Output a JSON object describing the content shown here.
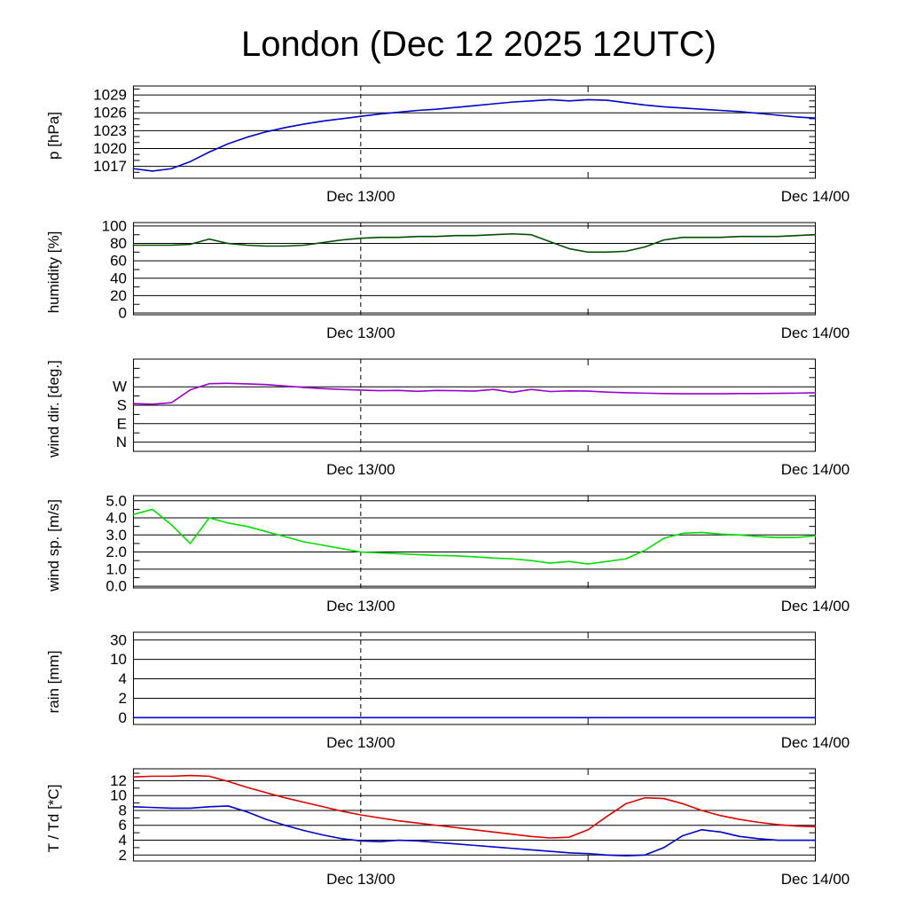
{
  "title": "London (Dec 12 2025 12UTC)",
  "x_axis": {
    "hours_total": 36,
    "dashed_line_hour": 12,
    "minor_tick_hour": 24,
    "tick_labels": [
      {
        "label": "Dec 13/00",
        "hour": 12
      },
      {
        "label": "Dec 14/00",
        "hour": 36
      }
    ]
  },
  "x_hours": [
    0,
    1,
    2,
    3,
    4,
    5,
    6,
    7,
    8,
    9,
    10,
    11,
    12,
    13,
    14,
    15,
    16,
    17,
    18,
    19,
    20,
    21,
    22,
    23,
    24,
    25,
    26,
    27,
    28,
    29,
    30,
    31,
    32,
    33,
    34,
    35,
    36
  ],
  "chart_data": [
    {
      "type": "line",
      "name": "pressure",
      "ylabel": "p [hPa]",
      "ylim": [
        1015.0,
        1030.5
      ],
      "y_minor_step": 1,
      "yticks": [
        {
          "label": "1017",
          "value": 1017
        },
        {
          "label": "1020",
          "value": 1020
        },
        {
          "label": "1023",
          "value": 1023
        },
        {
          "label": "1026",
          "value": 1026
        },
        {
          "label": "1029",
          "value": 1029
        }
      ],
      "series": [
        {
          "name": "pressure",
          "color": "#0000cc",
          "values": [
            1016.6,
            1016.2,
            1016.6,
            1017.8,
            1019.4,
            1020.8,
            1021.9,
            1022.8,
            1023.5,
            1024.1,
            1024.6,
            1025.0,
            1025.4,
            1025.8,
            1026.1,
            1026.4,
            1026.6,
            1026.9,
            1027.2,
            1027.5,
            1027.8,
            1028.0,
            1028.2,
            1028.0,
            1028.2,
            1028.1,
            1027.7,
            1027.3,
            1027.0,
            1026.8,
            1026.6,
            1026.4,
            1026.2,
            1025.9,
            1025.6,
            1025.3,
            1025.1
          ]
        }
      ]
    },
    {
      "type": "line",
      "name": "humidity",
      "ylabel": "humidity [%]",
      "ylim": [
        -2,
        104
      ],
      "y_minor_step": 10,
      "yticks": [
        {
          "label": "0",
          "value": 0
        },
        {
          "label": "20",
          "value": 20
        },
        {
          "label": "40",
          "value": 40
        },
        {
          "label": "60",
          "value": 60
        },
        {
          "label": "80",
          "value": 80
        },
        {
          "label": "100",
          "value": 100
        }
      ],
      "series": [
        {
          "name": "humidity",
          "color": "#004d00",
          "values": [
            78,
            78,
            78,
            79,
            85,
            80,
            78,
            77,
            77,
            78,
            81,
            84,
            86,
            87,
            87,
            88,
            88,
            89,
            89,
            90,
            91,
            90,
            82,
            74,
            70,
            70,
            71,
            76,
            84,
            87,
            87,
            87,
            88,
            88,
            88,
            89,
            90
          ]
        }
      ]
    },
    {
      "type": "line",
      "name": "wind-direction",
      "ylabel": "wind dir. [deg.]",
      "ylim": [
        -45,
        405
      ],
      "y_minor_step": 45,
      "yticks": [
        {
          "label": "N",
          "value": 0
        },
        {
          "label": "E",
          "value": 90
        },
        {
          "label": "S",
          "value": 180
        },
        {
          "label": "W",
          "value": 270
        }
      ],
      "series": [
        {
          "name": "wind-direction",
          "color": "#9900cc",
          "values": [
            188,
            185,
            192,
            255,
            285,
            287,
            284,
            281,
            274,
            267,
            261,
            257,
            254,
            251,
            252,
            248,
            252,
            251,
            249,
            257,
            243,
            257,
            247,
            250,
            249,
            244,
            241,
            239,
            237,
            236,
            236,
            236,
            237,
            237,
            238,
            239,
            241
          ]
        }
      ]
    },
    {
      "type": "line",
      "name": "wind-speed",
      "ylabel": "wind sp. [m/s]",
      "ylim": [
        -0.1,
        5.3
      ],
      "y_minor_step": 0.5,
      "yticks": [
        {
          "label": "0.0",
          "value": 0.0
        },
        {
          "label": "1.0",
          "value": 1.0
        },
        {
          "label": "2.0",
          "value": 2.0
        },
        {
          "label": "3.0",
          "value": 3.0
        },
        {
          "label": "4.0",
          "value": 4.0
        },
        {
          "label": "5.0",
          "value": 5.0
        }
      ],
      "series": [
        {
          "name": "wind-speed",
          "color": "#00dd00",
          "values": [
            4.2,
            4.5,
            3.6,
            2.5,
            4.0,
            3.7,
            3.5,
            3.2,
            2.9,
            2.6,
            2.4,
            2.2,
            2.0,
            1.95,
            1.9,
            1.85,
            1.8,
            1.78,
            1.72,
            1.65,
            1.6,
            1.5,
            1.35,
            1.45,
            1.3,
            1.45,
            1.6,
            2.1,
            2.8,
            3.1,
            3.15,
            3.05,
            3.0,
            2.9,
            2.85,
            2.85,
            2.95
          ]
        }
      ]
    },
    {
      "type": "line",
      "name": "rain",
      "ylabel": "rain [mm]",
      "ylim": [
        -0.35,
        4.4
      ],
      "y_nonlinear": {
        "tick_values": [
          0,
          2,
          4,
          10,
          30
        ]
      },
      "yticks": [
        {
          "label": "0",
          "value": 0
        },
        {
          "label": "2",
          "value": 2
        },
        {
          "label": "4",
          "value": 4
        },
        {
          "label": "10",
          "value": 10
        },
        {
          "label": "30",
          "value": 30
        }
      ],
      "series": [
        {
          "name": "rain",
          "color": "#0000cc",
          "values": [
            0,
            0,
            0,
            0,
            0,
            0,
            0,
            0,
            0,
            0,
            0,
            0,
            0,
            0,
            0,
            0,
            0,
            0,
            0,
            0,
            0,
            0,
            0,
            0,
            0,
            0,
            0,
            0,
            0,
            0,
            0,
            0,
            0,
            0,
            0,
            0,
            0
          ]
        }
      ]
    },
    {
      "type": "line",
      "name": "temperature",
      "ylabel": "T / Td [*C]",
      "ylim": [
        1.2,
        13.6
      ],
      "y_minor_step": 1,
      "yticks": [
        {
          "label": "2",
          "value": 2
        },
        {
          "label": "4",
          "value": 4
        },
        {
          "label": "6",
          "value": 6
        },
        {
          "label": "8",
          "value": 8
        },
        {
          "label": "10",
          "value": 10
        },
        {
          "label": "12",
          "value": 12
        }
      ],
      "series": [
        {
          "name": "temperature",
          "color": "#dd0000",
          "values": [
            12.5,
            12.6,
            12.6,
            12.7,
            12.6,
            11.9,
            11.1,
            10.4,
            9.7,
            9.1,
            8.5,
            7.9,
            7.4,
            7.0,
            6.6,
            6.3,
            6.0,
            5.7,
            5.4,
            5.1,
            4.8,
            4.5,
            4.3,
            4.4,
            5.4,
            7.2,
            8.9,
            9.7,
            9.6,
            8.9,
            8.0,
            7.3,
            6.8,
            6.4,
            6.1,
            5.9,
            5.8
          ]
        },
        {
          "name": "dewpoint",
          "color": "#0000cc",
          "values": [
            8.5,
            8.4,
            8.3,
            8.3,
            8.5,
            8.6,
            7.8,
            6.8,
            6.0,
            5.3,
            4.7,
            4.2,
            3.9,
            3.8,
            4.0,
            3.9,
            3.7,
            3.5,
            3.3,
            3.1,
            2.9,
            2.7,
            2.5,
            2.3,
            2.2,
            2.0,
            1.9,
            2.0,
            3.0,
            4.6,
            5.4,
            5.1,
            4.5,
            4.2,
            4.0,
            4.0,
            4.0
          ]
        }
      ]
    }
  ]
}
